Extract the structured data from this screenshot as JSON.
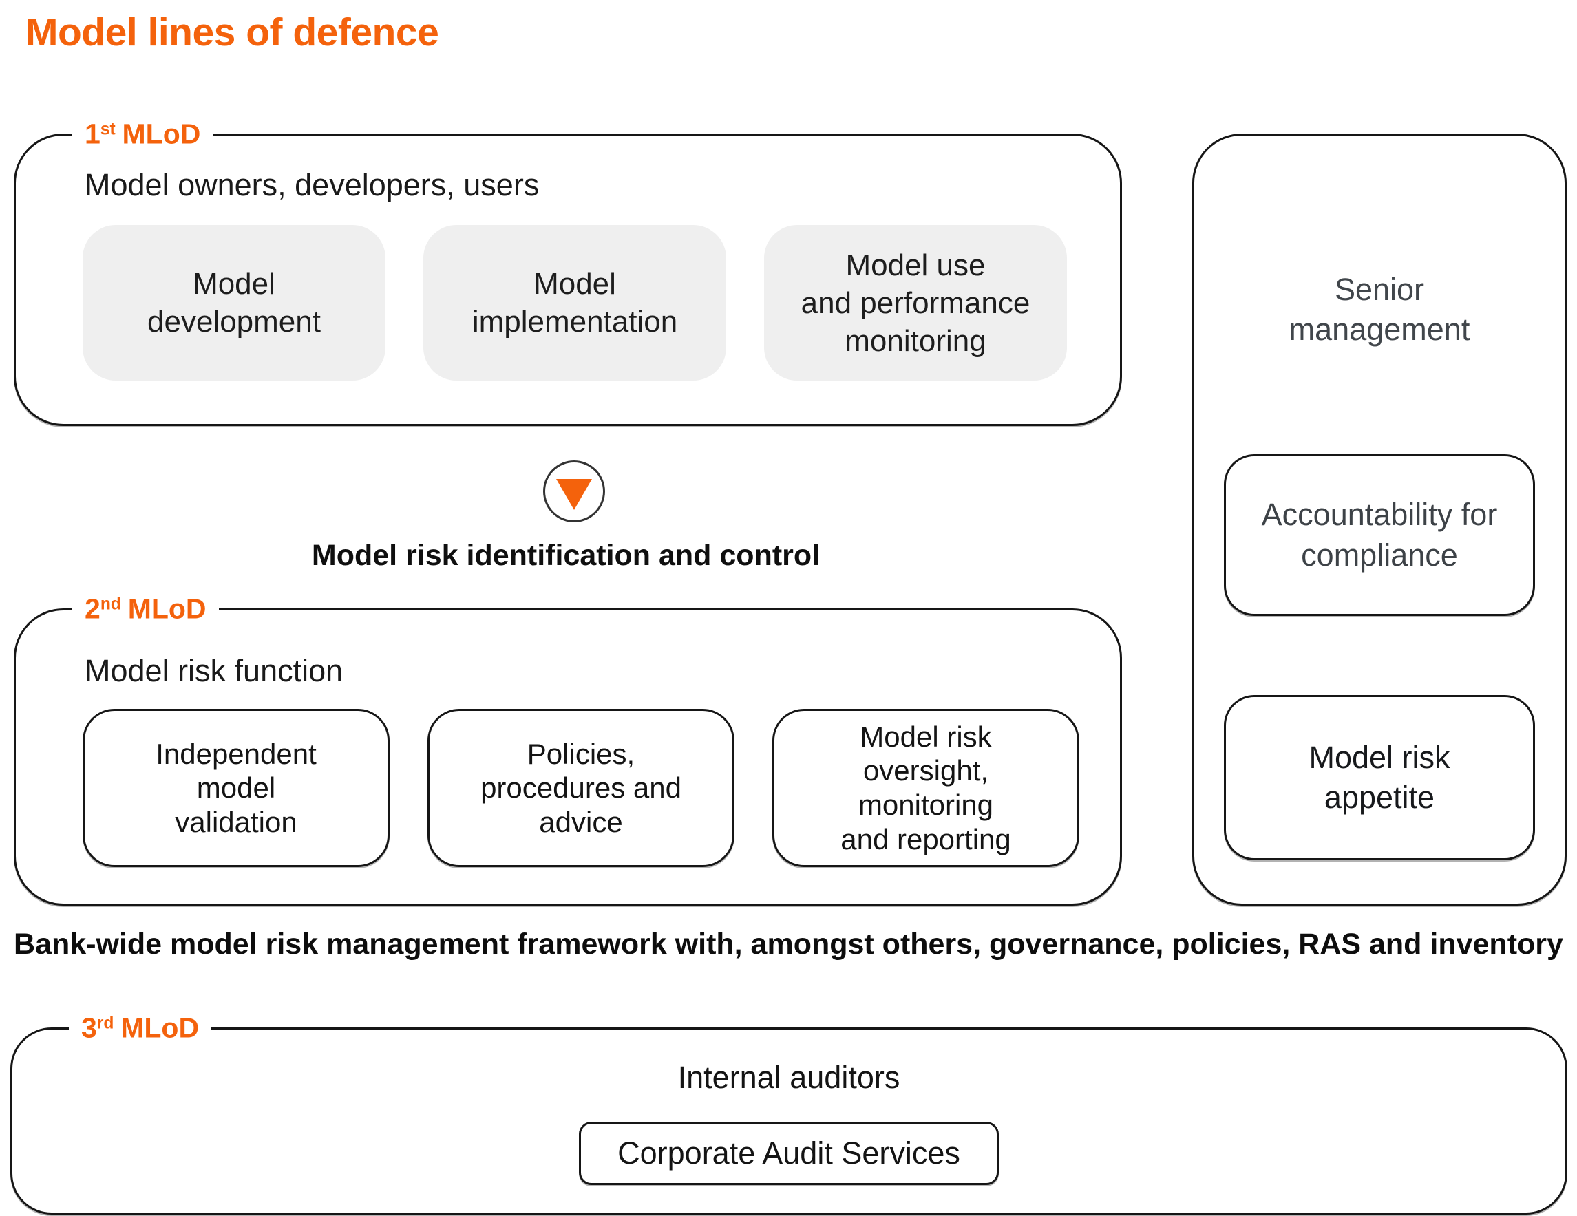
{
  "title": "Model lines of defence",
  "colors": {
    "accent_orange": "#f4620c",
    "text_black": "#1a1a1a",
    "text_gray": "#41464b",
    "box_gray_fill": "#efefef",
    "border_black": "#161616"
  },
  "sections": {
    "first": {
      "label_number": "1",
      "label_ordinal": "st",
      "label_suffix": "MLoD",
      "header": "Model owners, developers, users",
      "boxes": [
        "Model\ndevelopment",
        "Model\nimplementation",
        "Model use\nand performance\nmonitoring"
      ]
    },
    "flow": {
      "arrow_icon": "triangle-down",
      "caption": "Model risk identification and control"
    },
    "second": {
      "label_number": "2",
      "label_ordinal": "nd",
      "label_suffix": "MLoD",
      "header": "Model risk function",
      "boxes": [
        "Independent\nmodel\nvalidation",
        "Policies,\nprocedures and\nadvice",
        "Model risk\noversight,\nmonitoring\nand reporting"
      ]
    },
    "senior": {
      "header": "Senior\nmanagement",
      "boxes": [
        "Accountability for\ncompliance",
        "Model risk\nappetite"
      ]
    },
    "framework_note": "Bank-wide model risk management framework with, amongst others, governance, policies, RAS and inventory",
    "third": {
      "label_number": "3",
      "label_ordinal": "rd",
      "label_suffix": "MLoD",
      "header": "Internal auditors",
      "boxes": [
        "Corporate Audit Services"
      ]
    }
  }
}
